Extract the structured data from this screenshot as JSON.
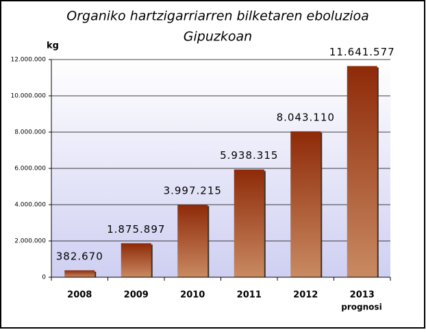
{
  "chart_data": {
    "type": "bar",
    "title": [
      "Organiko hartzigarriarren bilketaren eboluzioa",
      "Gipuzkoan"
    ],
    "y_label": "kg",
    "categories": [
      "2008",
      "2009",
      "2010",
      "2011",
      "2012",
      "2013"
    ],
    "annotation": "prognosi",
    "values": [
      382670,
      1875897,
      3997215,
      5938315,
      8043110,
      11641577
    ],
    "value_labels": [
      "382.670",
      "1.875.897",
      "3.997.215",
      "5.938.315",
      "8.043.110",
      "11.641.577"
    ],
    "color": "#9c3a12",
    "ylim": [
      0,
      12000000
    ],
    "yticks": [
      0,
      {
        "value": 2000000,
        "label": "2.000.000"
      },
      {
        "value": 4000000,
        "label": "4.000.000"
      },
      {
        "value": 6000000,
        "label": "6.000.000"
      },
      {
        "value": 8000000,
        "label": "8.000.000"
      },
      {
        "value": 10000000,
        "label": "10.000.000"
      },
      {
        "value": 12000000,
        "label": "12.000.000"
      }
    ],
    "grid": true
  }
}
